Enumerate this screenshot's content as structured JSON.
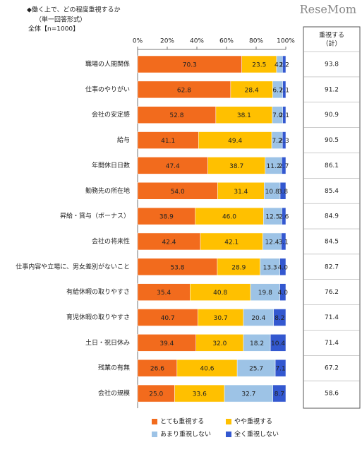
{
  "chart_data": {
    "type": "stacked-barh",
    "title": "◆働く上で、どの程度重視するか",
    "subtitle": [
      "（単一回答形式）",
      "全体【n=1000】"
    ],
    "watermark": "ReseMom",
    "categories": [
      "職場の人間関係",
      "仕事のやりがい",
      "会社の安定感",
      "給与",
      "年間休日日数",
      "勤務先の所在地",
      "昇給・賞与（ボーナス）",
      "会社の将来性",
      "仕事内容や立場に、男女差別がないこと",
      "有給休暇の取りやすさ",
      "育児休暇の取りやすさ",
      "土日・祝日休み",
      "残業の有無",
      "会社の規模"
    ],
    "series": [
      {
        "name": "とても重視する",
        "color": "#f26b1d",
        "values": [
          70.3,
          62.8,
          52.8,
          41.1,
          47.4,
          54.0,
          38.9,
          42.4,
          53.8,
          35.4,
          40.7,
          39.4,
          26.6,
          25.0
        ],
        "value_labels": [
          "70.3",
          "62.8",
          "52.8",
          "41.1",
          "47.4",
          "54.0",
          "38.9",
          "42.4",
          "53.8",
          "35.4",
          "40.7",
          "39.4",
          "26.6",
          "25.0"
        ]
      },
      {
        "name": "やや重視する",
        "color": "#ffc000",
        "values": [
          23.5,
          28.4,
          38.1,
          49.4,
          38.7,
          31.4,
          46.0,
          42.1,
          28.9,
          40.8,
          30.7,
          32.0,
          40.6,
          33.6
        ],
        "value_labels": [
          "23.5",
          "28.4",
          "38.1",
          "49.4",
          "38.7",
          "31.4",
          "46.0",
          "42.1",
          "28.9",
          "40.8",
          "30.7",
          "32.0",
          "40.6",
          "33.6"
        ]
      },
      {
        "name": "あまり重視しない",
        "color": "#9dc3e6",
        "values": [
          4.0,
          6.7,
          7.0,
          7.2,
          11.2,
          10.8,
          12.5,
          12.4,
          13.3,
          19.8,
          20.4,
          18.2,
          25.7,
          32.7
        ],
        "value_labels": [
          "4.0",
          "6.7",
          "7.0",
          "7.2",
          "11.2",
          "10.8",
          "12.5",
          "12.4",
          "13.3",
          "19.8",
          "20.4",
          "18.2",
          "25.7",
          "32.7"
        ]
      },
      {
        "name": "全く重視しない",
        "color": "#3358d0",
        "values": [
          2.2,
          2.1,
          2.1,
          2.3,
          2.7,
          3.8,
          2.6,
          3.1,
          4.0,
          4.0,
          8.2,
          10.4,
          7.1,
          8.7
        ],
        "value_labels": [
          "2.2",
          "2.1",
          "2.1",
          "2.3",
          "2.7",
          "3.8",
          "2.6",
          "3.1",
          "4.0",
          "4.0",
          "8.2",
          "10.4",
          "7.1",
          "8.7"
        ]
      }
    ],
    "totals": {
      "header": [
        "重視する",
        "（計）"
      ],
      "values": [
        93.8,
        91.2,
        90.9,
        90.5,
        86.1,
        85.4,
        84.9,
        84.5,
        82.7,
        76.2,
        71.4,
        71.4,
        67.2,
        58.6
      ]
    },
    "xlim": [
      0,
      100
    ],
    "xticks": [
      {
        "value": 0,
        "label": "0%"
      },
      {
        "value": 20,
        "label": "20%"
      },
      {
        "value": 40,
        "label": "40%"
      },
      {
        "value": 60,
        "label": "60%"
      },
      {
        "value": 80,
        "label": "80%"
      },
      {
        "value": 100,
        "label": "100%"
      }
    ]
  }
}
